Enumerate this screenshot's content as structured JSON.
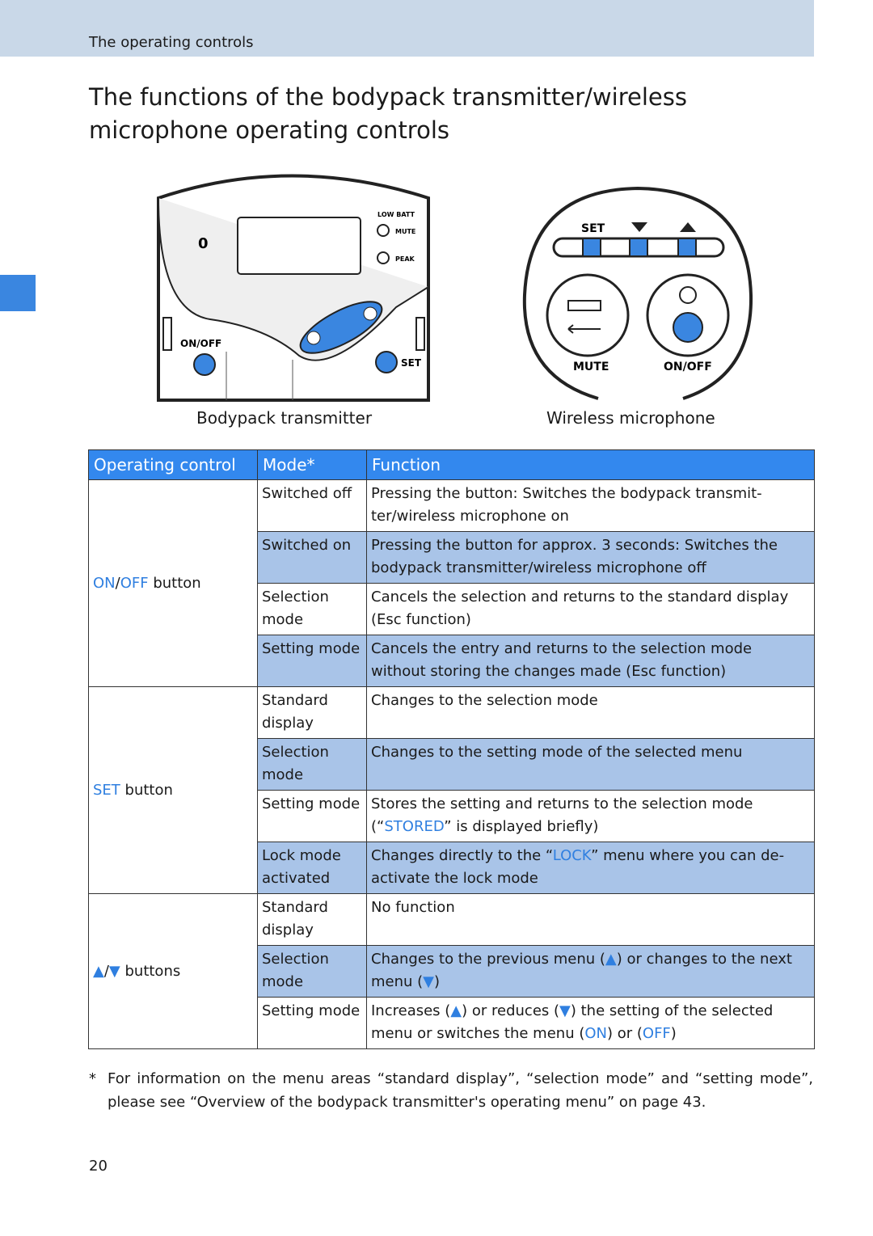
{
  "header": {
    "section": "The operating controls"
  },
  "title": "The functions of the bodypack transmitter/wireless microphone operating controls",
  "figures": {
    "bodypack": {
      "caption": "Bodypack transmitter",
      "labels": {
        "zero": "0",
        "low_batt": "LOW BATT",
        "mute": "MUTE",
        "peak": "PEAK",
        "on_off": "ON/OFF",
        "set": "SET"
      }
    },
    "microphone": {
      "caption": "Wireless microphone",
      "labels": {
        "set": "SET",
        "mute": "MUTE",
        "on_off": "ON/OFF"
      }
    }
  },
  "table": {
    "headers": [
      "Operating control",
      "Mode*",
      "Function"
    ],
    "groups": [
      {
        "control": [
          {
            "text": "ON",
            "accent": true
          },
          "/",
          {
            "text": "OFF",
            "accent": true
          },
          " button"
        ],
        "rows": [
          {
            "mode": "Switched off",
            "shaded": false,
            "function": [
              "Pressing the button: Switches the bodypack transmit-ter/wireless microphone on"
            ]
          },
          {
            "mode": "Switched on",
            "shaded": true,
            "function": [
              "Pressing the button for approx. 3 seconds: Switches the bodypack transmitter/wireless microphone off"
            ]
          },
          {
            "mode": "Selection mode",
            "shaded": false,
            "function": [
              "Cancels the selection and returns to the standard display (Esc function)"
            ]
          },
          {
            "mode": "Setting mode",
            "shaded": true,
            "function": [
              "Cancels the entry and returns to the selection mode without storing the changes made (Esc function)"
            ]
          }
        ]
      },
      {
        "control": [
          {
            "text": "SET",
            "accent": true
          },
          " button"
        ],
        "rows": [
          {
            "mode": "Standard display",
            "shaded": false,
            "function": [
              "Changes to the selection mode"
            ]
          },
          {
            "mode": "Selection mode",
            "shaded": true,
            "function": [
              "Changes to the setting mode of the selected menu"
            ]
          },
          {
            "mode": "Setting mode",
            "shaded": false,
            "function": [
              "Stores the setting and returns to the selection mode (“",
              {
                "text": "STORED",
                "accent": true
              },
              "” is displayed briefly)"
            ]
          },
          {
            "mode": "Lock mode activated",
            "shaded": true,
            "function": [
              "Changes directly to the “",
              {
                "text": "LOCK",
                "accent": true
              },
              "” menu where you can de-activate the lock mode"
            ]
          }
        ]
      },
      {
        "control": [
          {
            "text": "▲",
            "accent": true
          },
          "/",
          {
            "text": "▼",
            "accent": true
          },
          " buttons"
        ],
        "rows": [
          {
            "mode": "Standard display",
            "shaded": false,
            "function": [
              "No function"
            ]
          },
          {
            "mode": "Selection mode",
            "shaded": true,
            "function": [
              "Changes to the previous menu (",
              {
                "text": "▲",
                "accent": true
              },
              ") or changes to the next menu (",
              {
                "text": "▼",
                "accent": true
              },
              ")"
            ]
          },
          {
            "mode": "Setting mode",
            "shaded": false,
            "function": [
              "Increases (",
              {
                "text": "▲",
                "accent": true
              },
              ") or reduces (",
              {
                "text": "▼",
                "accent": true
              },
              ") the setting of the selected menu or switches the menu (",
              {
                "text": "ON",
                "accent": true
              },
              ") or (",
              {
                "text": "OFF",
                "accent": true
              },
              ")"
            ]
          }
        ]
      }
    ]
  },
  "footnote": {
    "marker": "*",
    "text": "For information on the menu areas “standard display”, “selection mode” and “setting mode”, please see “Overview of the bodypack transmitter's operating menu” on page 43."
  },
  "page_number": "20"
}
